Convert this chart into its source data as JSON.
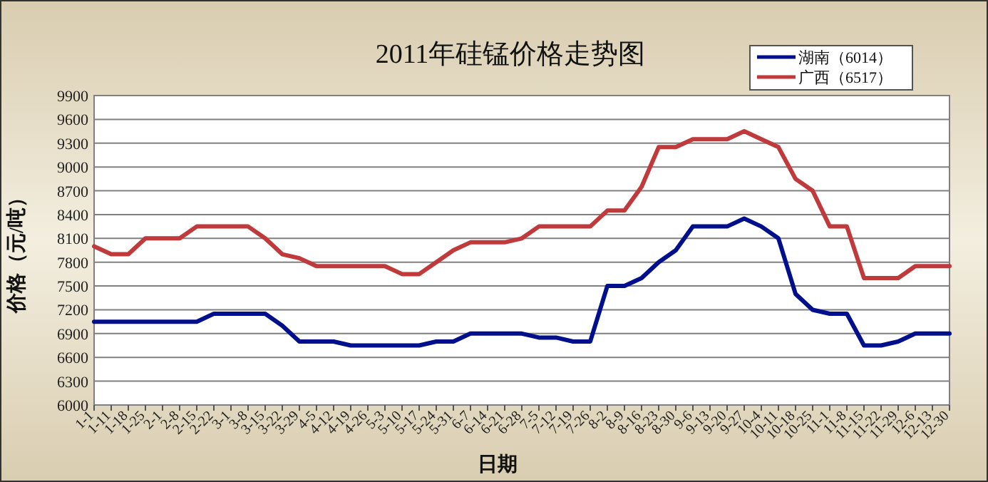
{
  "chart_data": {
    "type": "line",
    "title": "2011年硅锰价格走势图",
    "xlabel": "日期",
    "ylabel": "价格（元/吨）",
    "categories": [
      "1-1",
      "1-11",
      "1-18",
      "1-25",
      "2-1",
      "2-8",
      "2-15",
      "2-22",
      "3-1",
      "3-8",
      "3-15",
      "3-22",
      "3-29",
      "4-5",
      "4-12",
      "4-19",
      "4-26",
      "5-3",
      "5-10",
      "5-17",
      "5-24",
      "5-31",
      "6-7",
      "6-14",
      "6-21",
      "6-28",
      "7-5",
      "7-12",
      "7-19",
      "7-26",
      "8-2",
      "8-9",
      "8-16",
      "8-23",
      "8-30",
      "9-6",
      "9-13",
      "9-20",
      "9-27",
      "10-4",
      "10-11",
      "10-18",
      "10-25",
      "11-1",
      "11-8",
      "11-15",
      "11-22",
      "11-29",
      "12-6",
      "12-13",
      "12-30"
    ],
    "series": [
      {
        "name": "湖南（6014）",
        "color": "#000f8c",
        "values": [
          7050,
          7050,
          7050,
          7050,
          7050,
          7050,
          7050,
          7150,
          7150,
          7150,
          7150,
          7000,
          6800,
          6800,
          6800,
          6750,
          6750,
          6750,
          6750,
          6750,
          6800,
          6800,
          6900,
          6900,
          6900,
          6900,
          6850,
          6850,
          6800,
          6800,
          7500,
          7500,
          7600,
          7800,
          7950,
          8250,
          8250,
          8250,
          8350,
          8250,
          8100,
          7400,
          7200,
          7150,
          7150,
          6750,
          6750,
          6800,
          6900,
          6900,
          6900
        ]
      },
      {
        "name": "广西（6517）",
        "color": "#c0393b",
        "values": [
          8000,
          7900,
          7900,
          8100,
          8100,
          8100,
          8250,
          8250,
          8250,
          8250,
          8100,
          7900,
          7850,
          7750,
          7750,
          7750,
          7750,
          7750,
          7650,
          7650,
          7800,
          7950,
          8050,
          8050,
          8050,
          8100,
          8250,
          8250,
          8250,
          8250,
          8450,
          8450,
          8750,
          9250,
          9250,
          9350,
          9350,
          9350,
          9450,
          9350,
          9250,
          8850,
          8700,
          8250,
          8250,
          7600,
          7600,
          7600,
          7750,
          7750,
          7750
        ]
      }
    ],
    "ylim": [
      6000,
      9900
    ],
    "yticks": [
      6000,
      6300,
      6600,
      6900,
      7200,
      7500,
      7800,
      8100,
      8400,
      8700,
      9000,
      9300,
      9600,
      9900
    ],
    "grid": "y",
    "legend": "top right",
    "marker": "none",
    "line_style": "solid"
  }
}
